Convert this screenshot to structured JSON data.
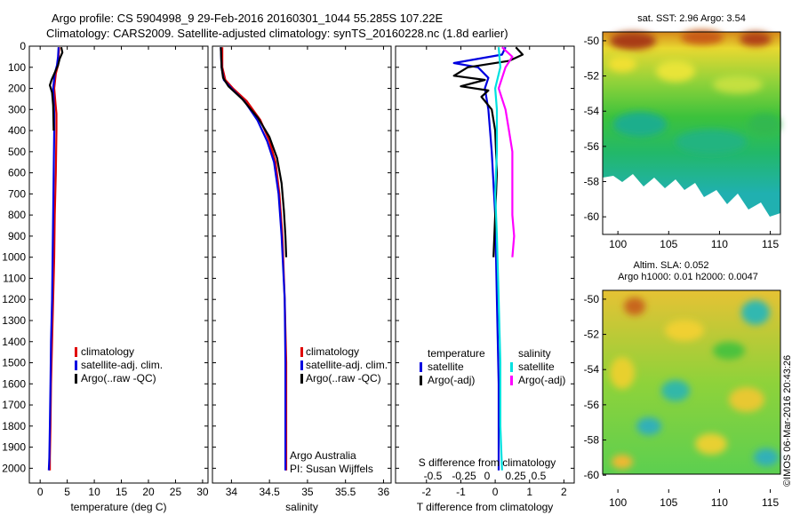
{
  "header": {
    "title_line1": "Argo profile: CS 5904998_9 29-Feb-2016 20160301_1044 55.285S 107.22E",
    "title_line2": "Climatology: CARS2009. Satellite-adjusted climatology: synTS_20160228.nc (1.8d earlier)"
  },
  "credit": "©IMOS 06-Mar-2016 20:43:26",
  "colors": {
    "climatology": "#e00000",
    "satellite": "#0000e0",
    "argo": "#000000",
    "sal_satellite": "#00e0e0",
    "sal_argo": "#ff00ff"
  },
  "chart_data": [
    {
      "id": "temperature",
      "type": "line",
      "xlabel": "temperature (deg C)",
      "ylabel": "",
      "xlim": [
        -2,
        31
      ],
      "ylim": [
        2070,
        0
      ],
      "xticks": [
        0,
        5,
        10,
        15,
        20,
        25,
        30
      ],
      "yticks": [
        0,
        100,
        200,
        300,
        400,
        500,
        600,
        700,
        800,
        900,
        1000,
        1100,
        1200,
        1300,
        1400,
        1500,
        1600,
        1700,
        1800,
        1900,
        2000
      ],
      "legend": [
        "climatology",
        "satellite-adj. clim.",
        "Argo(..raw -QC)"
      ],
      "series": [
        {
          "name": "climatology",
          "color": "#e00000",
          "points": [
            [
              3.5,
              5
            ],
            [
              3.4,
              50
            ],
            [
              3.3,
              90
            ],
            [
              2.9,
              130
            ],
            [
              2.6,
              200
            ],
            [
              2.8,
              260
            ],
            [
              3.0,
              320
            ],
            [
              3.0,
              400
            ],
            [
              2.9,
              600
            ],
            [
              2.7,
              800
            ],
            [
              2.6,
              1000
            ],
            [
              2.4,
              1200
            ],
            [
              2.2,
              1400
            ],
            [
              2.0,
              1600
            ],
            [
              1.9,
              1800
            ],
            [
              1.8,
              1950
            ],
            [
              1.8,
              2010
            ]
          ]
        },
        {
          "name": "satellite-adj. clim.",
          "color": "#0000e0",
          "points": [
            [
              3.4,
              5
            ],
            [
              3.3,
              50
            ],
            [
              3.1,
              90
            ],
            [
              2.7,
              130
            ],
            [
              2.4,
              200
            ],
            [
              2.5,
              260
            ],
            [
              2.6,
              320
            ],
            [
              2.6,
              400
            ],
            [
              2.5,
              600
            ],
            [
              2.4,
              800
            ],
            [
              2.3,
              1000
            ],
            [
              2.2,
              1200
            ],
            [
              2.0,
              1400
            ],
            [
              1.9,
              1600
            ],
            [
              1.8,
              1800
            ],
            [
              1.7,
              1950
            ],
            [
              1.6,
              2010
            ]
          ]
        },
        {
          "name": "Argo(..raw -QC)",
          "color": "#000000",
          "points": [
            [
              3.9,
              5
            ],
            [
              4.1,
              30
            ],
            [
              3.6,
              60
            ],
            [
              3.3,
              90
            ],
            [
              2.8,
              120
            ],
            [
              2.1,
              160
            ],
            [
              1.8,
              185
            ],
            [
              2.2,
              220
            ],
            [
              2.4,
              280
            ],
            [
              2.5,
              400
            ]
          ]
        }
      ]
    },
    {
      "id": "salinity",
      "type": "line",
      "xlabel": "salinity",
      "ylabel": "",
      "xlim": [
        33.75,
        36.1
      ],
      "ylim": [
        2070,
        0
      ],
      "xticks": [
        34,
        34.5,
        35,
        35.5,
        36
      ],
      "xticklabels": [
        "34",
        "34.5",
        "35",
        "35.5",
        "36"
      ],
      "legend": [
        "climatology",
        "satellite-adj. clim.",
        "Argo(..raw -QC)"
      ],
      "annotation": [
        "Argo Australia",
        "PI: Susan Wijffels"
      ],
      "series": [
        {
          "name": "climatology",
          "color": "#e00000",
          "points": [
            [
              33.88,
              5
            ],
            [
              33.88,
              100
            ],
            [
              33.92,
              160
            ],
            [
              34.02,
              200
            ],
            [
              34.2,
              260
            ],
            [
              34.38,
              350
            ],
            [
              34.5,
              450
            ],
            [
              34.58,
              550
            ],
            [
              34.63,
              700
            ],
            [
              34.67,
              900
            ],
            [
              34.7,
              1200
            ],
            [
              34.72,
              1500
            ],
            [
              34.72,
              1800
            ],
            [
              34.72,
              2010
            ]
          ]
        },
        {
          "name": "satellite-adj. clim.",
          "color": "#0000e0",
          "points": [
            [
              33.86,
              5
            ],
            [
              33.87,
              100
            ],
            [
              33.9,
              160
            ],
            [
              34.0,
              200
            ],
            [
              34.17,
              260
            ],
            [
              34.34,
              350
            ],
            [
              34.47,
              450
            ],
            [
              34.56,
              550
            ],
            [
              34.62,
              700
            ],
            [
              34.66,
              900
            ],
            [
              34.7,
              1200
            ],
            [
              34.71,
              1500
            ],
            [
              34.71,
              1800
            ],
            [
              34.71,
              2010
            ]
          ]
        },
        {
          "name": "Argo(..raw -QC)",
          "color": "#000000",
          "points": [
            [
              33.86,
              5
            ],
            [
              33.87,
              100
            ],
            [
              33.89,
              150
            ],
            [
              33.96,
              190
            ],
            [
              34.14,
              250
            ],
            [
              34.35,
              340
            ],
            [
              34.5,
              430
            ],
            [
              34.6,
              530
            ],
            [
              34.66,
              650
            ],
            [
              34.69,
              780
            ],
            [
              34.71,
              900
            ],
            [
              34.72,
              1000
            ]
          ]
        }
      ]
    },
    {
      "id": "difference",
      "type": "line",
      "xlabel": "T difference from climatology",
      "top_axis_label": "S difference from climatology",
      "xlim": [
        -2.9,
        2.3
      ],
      "ylim": [
        2070,
        0
      ],
      "xticks": [
        -2,
        -1,
        0,
        1,
        2
      ],
      "top_ticks": [
        "-0.5",
        "-0.25",
        "0",
        "0.25",
        "0.5"
      ],
      "legend_temperature": [
        "temperature",
        "satellite",
        "Argo(-adj)"
      ],
      "legend_salinity": [
        "salinity",
        "satellite",
        "Argo(-adj)"
      ],
      "series": [
        {
          "name": "temperature satellite",
          "color": "#0000e0",
          "points": [
            [
              0.3,
              5
            ],
            [
              0.2,
              40
            ],
            [
              -1.2,
              80
            ],
            [
              -0.5,
              100
            ],
            [
              -0.2,
              150
            ],
            [
              -0.3,
              200
            ],
            [
              -0.2,
              300
            ],
            [
              -0.1,
              500
            ],
            [
              0.0,
              800
            ],
            [
              0.05,
              1200
            ],
            [
              0.1,
              1600
            ],
            [
              0.1,
              2010
            ]
          ]
        },
        {
          "name": "temperature Argo(-adj)",
          "color": "#000000",
          "points": [
            [
              0.6,
              5
            ],
            [
              0.8,
              40
            ],
            [
              0.4,
              70
            ],
            [
              -0.8,
              100
            ],
            [
              -1.2,
              140
            ],
            [
              -0.3,
              160
            ],
            [
              -1.0,
              190
            ],
            [
              -0.2,
              210
            ],
            [
              -0.4,
              240
            ],
            [
              -0.1,
              300
            ],
            [
              0.0,
              400
            ],
            [
              0.05,
              600
            ],
            [
              0.0,
              800
            ],
            [
              -0.05,
              1000
            ]
          ]
        },
        {
          "name": "salinity satellite",
          "color": "#00e0e0",
          "points": [
            [
              0.1,
              5
            ],
            [
              0.15,
              100
            ],
            [
              0.0,
              200
            ],
            [
              0.05,
              300
            ],
            [
              0.05,
              500
            ],
            [
              0.0,
              700
            ],
            [
              0.05,
              900
            ],
            [
              0.1,
              1200
            ],
            [
              0.15,
              1500
            ],
            [
              0.15,
              1800
            ],
            [
              0.2,
              2010
            ]
          ]
        },
        {
          "name": "salinity Argo(-adj)",
          "color": "#ff00ff",
          "points": [
            [
              0.2,
              5
            ],
            [
              0.5,
              50
            ],
            [
              0.3,
              100
            ],
            [
              0.1,
              200
            ],
            [
              0.3,
              300
            ],
            [
              0.4,
              400
            ],
            [
              0.5,
              500
            ],
            [
              0.5,
              600
            ],
            [
              0.5,
              700
            ],
            [
              0.5,
              800
            ],
            [
              0.55,
              900
            ],
            [
              0.5,
              1000
            ]
          ]
        }
      ]
    },
    {
      "id": "sst_map",
      "type": "heatmap",
      "title": "sat. SST: 2.96 Argo: 3.54",
      "xlim": [
        98.5,
        116
      ],
      "ylim": [
        -61,
        -49.5
      ],
      "xticks": [
        100,
        105,
        110,
        115
      ],
      "yticks": [
        -50,
        -52,
        -54,
        -56,
        -58,
        -60
      ]
    },
    {
      "id": "sla_map",
      "type": "heatmap",
      "title_line1": "Altim. SLA: 0.052",
      "title_line2": "Argo h1000: 0.01 h2000: 0.0047",
      "xlim": [
        98.5,
        116
      ],
      "ylim": [
        -61,
        -49.5
      ],
      "xticks": [
        100,
        105,
        110,
        115
      ],
      "yticks": [
        -50,
        -52,
        -54,
        -56,
        -58,
        -60
      ]
    }
  ]
}
